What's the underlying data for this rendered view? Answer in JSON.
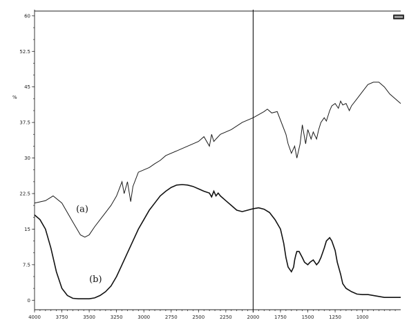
{
  "chart_data": {
    "type": "line",
    "title": "",
    "xlabel": "",
    "ylabel": "%",
    "xlim": [
      4000,
      650
    ],
    "ylim": [
      -2,
      61
    ],
    "x_reversed": true,
    "grid": false,
    "xticks": [
      4000,
      3750,
      3500,
      3250,
      3000,
      2750,
      2500,
      2250,
      2000,
      1750,
      1500,
      1250,
      1000
    ],
    "xtick_labels": [
      "4000",
      "3750",
      "3500",
      "3250",
      "3000",
      "2750",
      "2500",
      "2250",
      "2000",
      "1750",
      "1500",
      "1250",
      "1000"
    ],
    "yticks": [
      0,
      7.5,
      15,
      22.5,
      30,
      37.5,
      45,
      52.5,
      60
    ],
    "ytick_labels": [
      "0",
      "7.5",
      "15",
      "22.5",
      "30",
      "37.5",
      "45",
      "52.5",
      "60"
    ],
    "vertical_line_x": 2000,
    "series": [
      {
        "label": "(a)",
        "x": [
          4000,
          3900,
          3830,
          3750,
          3650,
          3580,
          3540,
          3500,
          3450,
          3400,
          3350,
          3300,
          3250,
          3200,
          3180,
          3150,
          3120,
          3100,
          3050,
          3000,
          2950,
          2900,
          2850,
          2800,
          2700,
          2600,
          2500,
          2450,
          2400,
          2380,
          2360,
          2340,
          2300,
          2200,
          2100,
          2000,
          1900,
          1870,
          1830,
          1780,
          1700,
          1680,
          1650,
          1620,
          1600,
          1570,
          1550,
          1520,
          1500,
          1470,
          1450,
          1420,
          1400,
          1380,
          1350,
          1330,
          1300,
          1280,
          1250,
          1220,
          1200,
          1180,
          1150,
          1120,
          1100,
          1050,
          1000,
          950,
          900,
          850,
          800,
          750,
          700,
          650
        ],
        "y": [
          20.5,
          21.0,
          22.0,
          20.5,
          16.5,
          13.8,
          13.3,
          13.8,
          15.5,
          17.0,
          18.5,
          20.0,
          22.0,
          25.0,
          22.5,
          25.0,
          20.8,
          24.0,
          27.0,
          27.5,
          28.0,
          28.8,
          29.5,
          30.5,
          31.5,
          32.5,
          33.5,
          34.5,
          32.5,
          35.0,
          33.5,
          34.0,
          35.0,
          36.0,
          37.5,
          38.5,
          39.8,
          40.3,
          39.5,
          39.8,
          35.0,
          33.0,
          31.0,
          32.5,
          30.0,
          33.0,
          37.0,
          33.0,
          36.0,
          34.0,
          35.5,
          34.0,
          36.0,
          37.5,
          38.5,
          37.8,
          40.0,
          41.0,
          41.5,
          40.5,
          42.0,
          41.2,
          41.5,
          40.0,
          41.0,
          42.5,
          44.0,
          45.5,
          46.0,
          46.0,
          45.0,
          43.5,
          42.5,
          41.5
        ]
      },
      {
        "label": "(b)",
        "x": [
          4000,
          3950,
          3900,
          3850,
          3800,
          3750,
          3700,
          3650,
          3600,
          3550,
          3500,
          3450,
          3400,
          3350,
          3300,
          3250,
          3200,
          3150,
          3100,
          3050,
          3000,
          2950,
          2900,
          2850,
          2800,
          2750,
          2700,
          2650,
          2600,
          2550,
          2500,
          2450,
          2400,
          2380,
          2360,
          2340,
          2320,
          2300,
          2250,
          2200,
          2150,
          2100,
          2050,
          2000,
          1950,
          1900,
          1850,
          1800,
          1750,
          1720,
          1700,
          1680,
          1650,
          1630,
          1620,
          1610,
          1600,
          1580,
          1550,
          1530,
          1500,
          1480,
          1450,
          1420,
          1400,
          1380,
          1350,
          1330,
          1300,
          1280,
          1250,
          1230,
          1200,
          1180,
          1150,
          1100,
          1050,
          1000,
          950,
          900,
          850,
          800,
          750,
          700,
          650
        ],
        "y": [
          18.0,
          17.0,
          15.0,
          11.0,
          6.0,
          2.5,
          1.0,
          0.4,
          0.3,
          0.3,
          0.3,
          0.5,
          1.0,
          1.8,
          3.0,
          5.0,
          7.5,
          10.0,
          12.5,
          15.0,
          17.0,
          19.0,
          20.5,
          22.0,
          23.0,
          23.8,
          24.3,
          24.4,
          24.3,
          24.0,
          23.5,
          23.0,
          22.6,
          21.8,
          23.0,
          22.0,
          22.6,
          22.0,
          21.0,
          20.0,
          19.0,
          18.7,
          19.0,
          19.3,
          19.5,
          19.2,
          18.5,
          17.0,
          15.0,
          12.0,
          9.0,
          7.0,
          6.0,
          7.0,
          8.5,
          9.5,
          10.3,
          10.3,
          9.0,
          8.0,
          7.5,
          8.0,
          8.5,
          7.5,
          8.0,
          9.0,
          11.0,
          12.5,
          13.2,
          12.5,
          10.5,
          8.0,
          5.5,
          3.5,
          2.5,
          1.8,
          1.3,
          1.2,
          1.2,
          1.0,
          0.8,
          0.6,
          0.6,
          0.6,
          0.6
        ]
      }
    ]
  }
}
